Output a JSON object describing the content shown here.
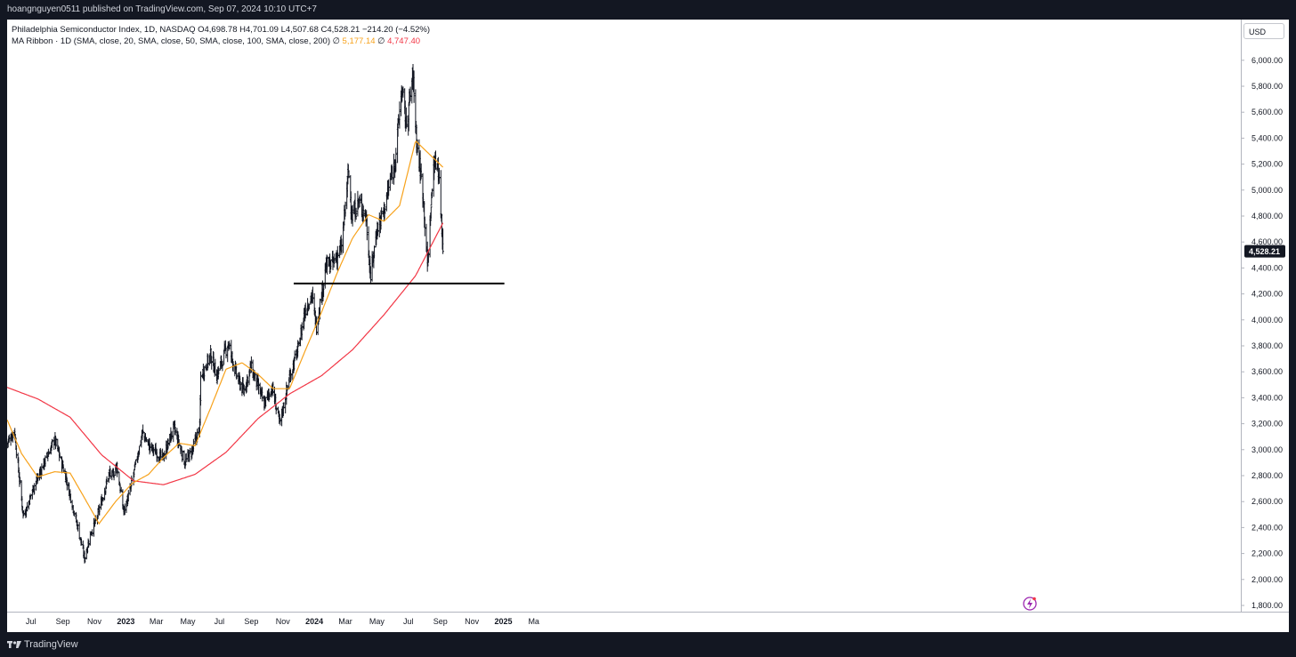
{
  "header": {
    "publisher_text": "hoangnguyen0511 published on TradingView.com, Sep 07, 2024 10:10 UTC+7"
  },
  "legend": {
    "symbol": "Philadelphia Semiconductor Index, 1D, NASDAQ",
    "ohlc": "O4,698.78  H4,701.09  L4,507.68  C4,528.21  −214.20 (−4.52%)",
    "ribbon": "MA Ribbon · 1D (SMA, close, 20, SMA, close, 50, SMA, close, 100, SMA, close, 200)",
    "sep": "∅",
    "ma50_value": "5,177.14",
    "ma200_value": "4,747.40"
  },
  "currency": "USD",
  "footer": {
    "brand": "TradingView",
    "logo": "tradingview-logo-icon"
  },
  "colors": {
    "price_bars": "#131722",
    "ma50": "#f7a21b",
    "ma200": "#f23645",
    "support_line": "#000000",
    "last_price_bg": "#131722"
  },
  "chart_data": {
    "type": "ohlc",
    "title": "Philadelphia Semiconductor Index, 1D, NASDAQ",
    "x_ticks": [
      "Jul",
      "Sep",
      "Nov",
      "2023",
      "Mar",
      "May",
      "Jul",
      "Sep",
      "Nov",
      "2024",
      "Mar",
      "May",
      "Jul",
      "Sep",
      "Nov",
      "2025",
      "Ma"
    ],
    "y_ticks": [
      "1,800.00",
      "2,000.00",
      "2,200.00",
      "2,400.00",
      "2,600.00",
      "2,800.00",
      "3,000.00",
      "3,200.00",
      "3,400.00",
      "3,600.00",
      "3,800.00",
      "4,000.00",
      "4,200.00",
      "4,400.00",
      "4,600.00",
      "4,800.00",
      "5,000.00",
      "5,200.00",
      "5,400.00",
      "5,600.00",
      "5,800.00",
      "6,000.00"
    ],
    "ylim": [
      1800,
      6200
    ],
    "last_price": "4,528.21",
    "price_keypoints": [
      [
        "2022-05-16",
        3050
      ],
      [
        "2022-05-30",
        3150
      ],
      [
        "2022-06-16",
        2500
      ],
      [
        "2022-06-23",
        2550
      ],
      [
        "2022-07-05",
        2700
      ],
      [
        "2022-08-16",
        3080
      ],
      [
        "2022-09-06",
        2800
      ],
      [
        "2022-09-30",
        2400
      ],
      [
        "2022-10-13",
        2160
      ],
      [
        "2022-10-24",
        2350
      ],
      [
        "2022-11-04",
        2450
      ],
      [
        "2022-11-30",
        2820
      ],
      [
        "2022-12-05",
        2790
      ],
      [
        "2022-12-14",
        2880
      ],
      [
        "2022-12-28",
        2520
      ],
      [
        "2023-01-10",
        2700
      ],
      [
        "2023-02-02",
        3130
      ],
      [
        "2023-02-15",
        3030
      ],
      [
        "2023-03-13",
        2930
      ],
      [
        "2023-04-04",
        3170
      ],
      [
        "2023-04-25",
        2900
      ],
      [
        "2023-05-10",
        3000
      ],
      [
        "2023-05-24",
        3170
      ],
      [
        "2023-05-26",
        3560
      ],
      [
        "2023-06-14",
        3730
      ],
      [
        "2023-06-26",
        3570
      ],
      [
        "2023-07-18",
        3820
      ],
      [
        "2023-08-04",
        3560
      ],
      [
        "2023-08-17",
        3450
      ],
      [
        "2023-08-31",
        3640
      ],
      [
        "2023-09-26",
        3350
      ],
      [
        "2023-10-11",
        3480
      ],
      [
        "2023-10-26",
        3200
      ],
      [
        "2023-11-14",
        3560
      ],
      [
        "2023-12-01",
        3780
      ],
      [
        "2023-12-14",
        4080
      ],
      [
        "2023-12-27",
        4190
      ],
      [
        "2024-01-05",
        3950
      ],
      [
        "2024-01-24",
        4420
      ],
      [
        "2024-02-05",
        4430
      ],
      [
        "2024-02-23",
        4560
      ],
      [
        "2024-03-07",
        5150
      ],
      [
        "2024-03-14",
        4800
      ],
      [
        "2024-03-27",
        4910
      ],
      [
        "2024-04-10",
        4800
      ],
      [
        "2024-04-19",
        4330
      ],
      [
        "2024-05-01",
        4700
      ],
      [
        "2024-05-15",
        4850
      ],
      [
        "2024-06-06",
        5250
      ],
      [
        "2024-06-18",
        5780
      ],
      [
        "2024-06-27",
        5500
      ],
      [
        "2024-07-10",
        5880
      ],
      [
        "2024-07-17",
        5390
      ],
      [
        "2024-07-30",
        4950
      ],
      [
        "2024-08-07",
        4420
      ],
      [
        "2024-08-19",
        5200
      ],
      [
        "2024-08-27",
        5210
      ],
      [
        "2024-08-30",
        5070
      ],
      [
        "2024-09-03",
        4780
      ],
      [
        "2024-09-06",
        4528
      ]
    ],
    "ma50_keypoints": [
      [
        "2022-05-16",
        3230
      ],
      [
        "2022-06-13",
        2970
      ],
      [
        "2022-07-14",
        2790
      ],
      [
        "2022-08-16",
        2830
      ],
      [
        "2022-09-15",
        2820
      ],
      [
        "2022-10-14",
        2620
      ],
      [
        "2022-11-10",
        2430
      ],
      [
        "2022-12-12",
        2600
      ],
      [
        "2023-01-13",
        2740
      ],
      [
        "2023-02-14",
        2810
      ],
      [
        "2023-03-15",
        2940
      ],
      [
        "2023-04-14",
        3050
      ],
      [
        "2023-05-15",
        3030
      ],
      [
        "2023-06-14",
        3320
      ],
      [
        "2023-07-14",
        3620
      ],
      [
        "2023-08-14",
        3670
      ],
      [
        "2023-09-14",
        3580
      ],
      [
        "2023-10-13",
        3470
      ],
      [
        "2023-11-14",
        3470
      ],
      [
        "2023-12-14",
        3760
      ],
      [
        "2024-01-15",
        4060
      ],
      [
        "2024-02-14",
        4360
      ],
      [
        "2024-03-15",
        4630
      ],
      [
        "2024-04-15",
        4810
      ],
      [
        "2024-05-15",
        4760
      ],
      [
        "2024-06-14",
        4880
      ],
      [
        "2024-07-15",
        5380
      ],
      [
        "2024-08-15",
        5260
      ],
      [
        "2024-09-06",
        5177
      ]
    ],
    "ma200_keypoints": [
      [
        "2022-05-16",
        3480
      ],
      [
        "2022-07-15",
        3390
      ],
      [
        "2022-09-15",
        3250
      ],
      [
        "2022-11-15",
        2960
      ],
      [
        "2023-01-16",
        2760
      ],
      [
        "2023-03-15",
        2730
      ],
      [
        "2023-05-15",
        2810
      ],
      [
        "2023-07-14",
        2980
      ],
      [
        "2023-09-14",
        3240
      ],
      [
        "2023-11-14",
        3430
      ],
      [
        "2024-01-15",
        3570
      ],
      [
        "2024-03-15",
        3770
      ],
      [
        "2024-05-15",
        4040
      ],
      [
        "2024-07-15",
        4340
      ],
      [
        "2024-09-06",
        4747
      ]
    ],
    "support_line": {
      "start": "2023-11-22",
      "end": "2025-01-03",
      "value": 4280
    }
  }
}
